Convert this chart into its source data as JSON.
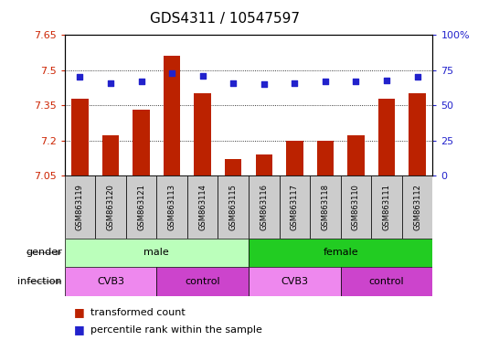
{
  "title": "GDS4311 / 10547597",
  "samples": [
    "GSM863119",
    "GSM863120",
    "GSM863121",
    "GSM863113",
    "GSM863114",
    "GSM863115",
    "GSM863116",
    "GSM863117",
    "GSM863118",
    "GSM863110",
    "GSM863111",
    "GSM863112"
  ],
  "transformed_count": [
    7.38,
    7.22,
    7.33,
    7.56,
    7.4,
    7.12,
    7.14,
    7.2,
    7.2,
    7.22,
    7.38,
    7.4
  ],
  "percentile_rank": [
    70,
    66,
    67,
    73,
    71,
    66,
    65,
    66,
    67,
    67,
    68,
    70
  ],
  "ylim_left": [
    7.05,
    7.65
  ],
  "ylim_right": [
    0,
    100
  ],
  "yticks_left": [
    7.05,
    7.2,
    7.35,
    7.5,
    7.65
  ],
  "yticks_right": [
    0,
    25,
    50,
    75,
    100
  ],
  "ytick_labels_left": [
    "7.05",
    "7.2",
    "7.35",
    "7.5",
    "7.65"
  ],
  "ytick_labels_right": [
    "0",
    "25",
    "50",
    "75",
    "100%"
  ],
  "bar_color": "#bb2200",
  "dot_color": "#2222cc",
  "gender_groups": [
    {
      "label": "male",
      "start": 0,
      "end": 6,
      "color": "#bbffbb"
    },
    {
      "label": "female",
      "start": 6,
      "end": 12,
      "color": "#22cc22"
    }
  ],
  "infection_groups": [
    {
      "label": "CVB3",
      "start": 0,
      "end": 3,
      "color": "#ee88ee"
    },
    {
      "label": "control",
      "start": 3,
      "end": 6,
      "color": "#cc44cc"
    },
    {
      "label": "CVB3",
      "start": 6,
      "end": 9,
      "color": "#ee88ee"
    },
    {
      "label": "control",
      "start": 9,
      "end": 12,
      "color": "#cc44cc"
    }
  ],
  "title_fontsize": 11,
  "tick_label_fontsize": 8,
  "bar_width": 0.55,
  "sample_box_color": "#cccccc",
  "left_axis_color": "#cc2200",
  "right_axis_color": "#2222cc"
}
